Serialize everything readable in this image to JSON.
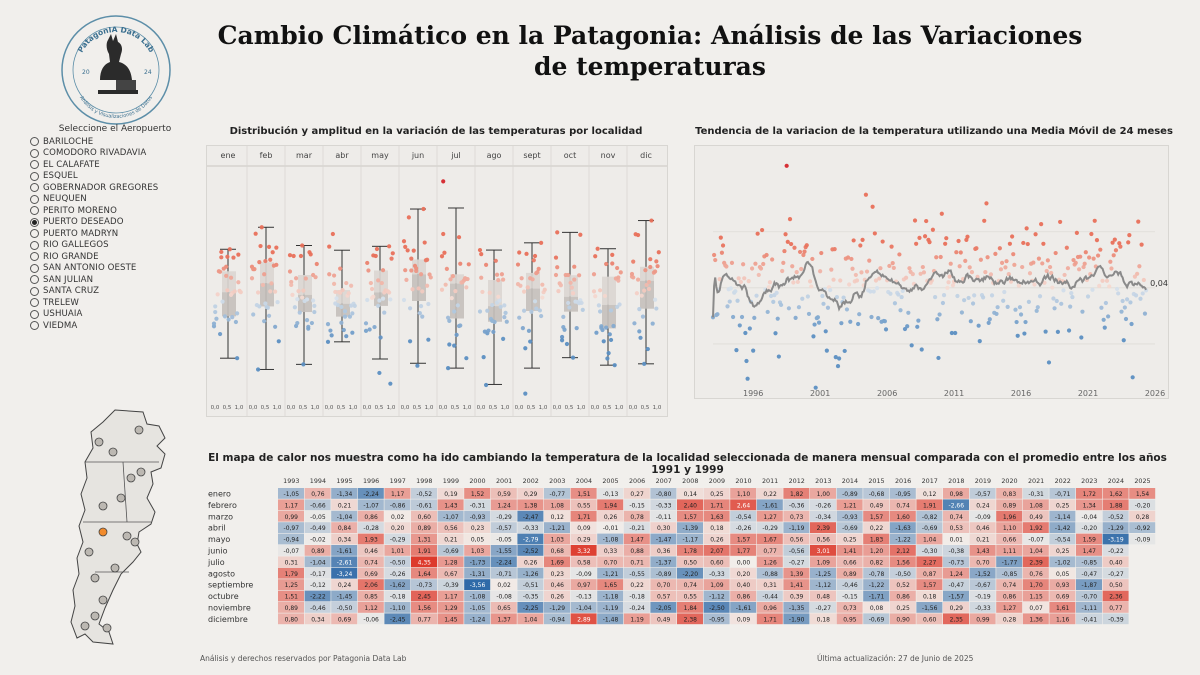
{
  "title": "Cambio Climático en la Patagonia: Análisis de las Variaciones de temperaturas",
  "logo": {
    "name": "PatagonIA Data Lab",
    "year_left": "20",
    "year_right": "24",
    "tagline": "Análisis y Visualizaciones de Datos"
  },
  "airport_selector": {
    "title": "Seleccione el Aeropuerto",
    "selected": "PUERTO DESEADO",
    "options": [
      "BARILOCHE",
      "COMODORO RIVADAVIA",
      "EL CALAFATE",
      "ESQUEL",
      "GOBERNADOR GREGORES",
      "NEUQUEN",
      "PERITO MORENO",
      "PUERTO DESEADO",
      "PUERTO MADRYN",
      "RIO GALLEGOS",
      "RIO GRANDE",
      "SAN ANTONIO OESTE",
      "SAN JULIAN",
      "SANTA CRUZ",
      "TRELEW",
      "USHUAIA",
      "VIEDMA"
    ]
  },
  "colors": {
    "warm": "#e8705a",
    "cool": "#5b8fc2",
    "trend": "#8a8a8a",
    "highlight": "#d4262c",
    "map_marker": "#f28b2c"
  },
  "chart_data": [
    {
      "type": "boxplot",
      "title": "Distribución y amplitud en la variación de las temperaturas por localidad",
      "categories": [
        "ene",
        "feb",
        "mar",
        "abr",
        "may",
        "jun",
        "jul",
        "ago",
        "sept",
        "oct",
        "nov",
        "dic"
      ],
      "x_tick_labels": [
        "0,0",
        "0,5",
        "1,0"
      ],
      "ylim": [
        -3.5,
        4.7
      ],
      "outliers": [
        {
          "month": "jul",
          "value": 4.35
        }
      ]
    },
    {
      "type": "line",
      "title": "Tendencia de la variacion de la temperatura utilizando una Media Móvil de 24 meses",
      "x_ticks": [
        "1996",
        "2001",
        "2006",
        "2011",
        "2016",
        "2021",
        "2026"
      ],
      "xlim": [
        1993,
        2026
      ],
      "ylim": [
        -3.5,
        4.7
      ],
      "last_value_label": "0,04"
    },
    {
      "type": "heatmap",
      "title": "El mapa de calor nos muestra como ha ido cambiando la temperatura de la localidad seleccionada de manera mensual comparada con el promedio entre los años 1991 y 1999",
      "years": [
        "1993",
        "1994",
        "1995",
        "1996",
        "1997",
        "1998",
        "1999",
        "2000",
        "2001",
        "2002",
        "2003",
        "2004",
        "2005",
        "2006",
        "2007",
        "2008",
        "2009",
        "2010",
        "2011",
        "2012",
        "2013",
        "2014",
        "2015",
        "2016",
        "2017",
        "2018",
        "2019",
        "2020",
        "2021",
        "2022",
        "2023",
        "2024",
        "2025"
      ],
      "rows": [
        {
          "month": "enero",
          "values": [
            "-1,05",
            "0,76",
            "-1,34",
            "-2,24",
            "1,17",
            "-0,52",
            "0,19",
            "1,52",
            "0,59",
            "0,29",
            "-0,77",
            "1,51",
            "-0,13",
            "0,27",
            "-0,80",
            "0,14",
            "0,25",
            "1,10",
            "0,22",
            "1,82",
            "1,00",
            "-0,89",
            "-0,68",
            "-0,95",
            "0,12",
            "0,98",
            "-0,57",
            "0,83",
            "-0,31",
            "-0,71",
            "1,72",
            "1,62",
            "1,54"
          ]
        },
        {
          "month": "febrero",
          "values": [
            "1,17",
            "-0,66",
            "0,21",
            "-1,07",
            "-0,86",
            "-0,61",
            "1,43",
            "-0,31",
            "1,24",
            "1,38",
            "1,08",
            "0,55",
            "1,94",
            "-0,15",
            "-0,33",
            "2,40",
            "1,71",
            "2,64",
            "-1,61",
            "-0,36",
            "-0,26",
            "1,21",
            "0,49",
            "0,74",
            "1,91",
            "-2,66",
            "0,24",
            "0,89",
            "1,08",
            "0,25",
            "1,34",
            "1,88",
            "-0,20"
          ]
        },
        {
          "month": "marzo",
          "values": [
            "0,99",
            "-0,05",
            "-1,04",
            "0,86",
            "0,02",
            "0,60",
            "-1,07",
            "-0,93",
            "-0,29",
            "-2,47",
            "0,12",
            "1,71",
            "0,26",
            "0,78",
            "-0,11",
            "1,57",
            "1,63",
            "-0,54",
            "1,27",
            "0,73",
            "-0,34",
            "-0,93",
            "1,57",
            "1,60",
            "-0,82",
            "0,74",
            "-0,09",
            "1,96",
            "0,49",
            "-1,14",
            "-0,04",
            "-0,52",
            "0,28"
          ]
        },
        {
          "month": "abril",
          "values": [
            "-0,97",
            "-0,49",
            "0,84",
            "-0,28",
            "0,20",
            "0,89",
            "0,56",
            "0,23",
            "-0,57",
            "-0,33",
            "-1,21",
            "0,09",
            "-0,01",
            "-0,21",
            "0,30",
            "-1,39",
            "0,18",
            "-0,26",
            "-0,29",
            "-1,19",
            "2,39",
            "-0,69",
            "0,22",
            "-1,63",
            "-0,69",
            "0,53",
            "0,46",
            "1,10",
            "1,92",
            "-1,42",
            "-0,20",
            "-1,29",
            "-0,92"
          ]
        },
        {
          "month": "mayo",
          "values": [
            "-0,94",
            "-0,02",
            "0,34",
            "1,93",
            "-0,29",
            "1,31",
            "0,21",
            "0,05",
            "-0,05",
            "-2,79",
            "1,03",
            "0,29",
            "-1,08",
            "1,47",
            "-1,47",
            "-1,17",
            "0,26",
            "1,57",
            "1,67",
            "0,56",
            "0,56",
            "0,25",
            "1,83",
            "-1,22",
            "1,04",
            "0,01",
            "0,21",
            "0,66",
            "-0,07",
            "-0,54",
            "1,59",
            "-3,19",
            "-0,09"
          ]
        },
        {
          "month": "junio",
          "values": [
            "-0,07",
            "0,89",
            "-1,61",
            "0,46",
            "1,01",
            "1,91",
            "-0,69",
            "1,03",
            "-1,55",
            "-2,52",
            "0,68",
            "3,32",
            "0,33",
            "0,88",
            "0,36",
            "1,78",
            "2,07",
            "1,77",
            "0,77",
            "-0,56",
            "3,01",
            "1,41",
            "1,20",
            "2,12",
            "-0,30",
            "-0,38",
            "1,43",
            "1,11",
            "1,04",
            "0,25",
            "1,47",
            "-0,22",
            ""
          ]
        },
        {
          "month": "julio",
          "values": [
            "0,31",
            "-1,04",
            "-2,61",
            "0,74",
            "-0,50",
            "4,35",
            "1,28",
            "-1,73",
            "-2,24",
            "0,26",
            "1,69",
            "0,58",
            "0,70",
            "0,71",
            "-1,37",
            "0,50",
            "0,60",
            "0,00",
            "1,26",
            "-0,27",
            "1,09",
            "0,66",
            "0,82",
            "1,56",
            "2,27",
            "-0,73",
            "0,70",
            "-1,77",
            "2,39",
            "-1,02",
            "-0,85",
            "0,40",
            ""
          ]
        },
        {
          "month": "agosto",
          "values": [
            "1,79",
            "-0,17",
            "-3,24",
            "0,69",
            "-0,26",
            "1,64",
            "0,67",
            "-1,31",
            "-0,71",
            "-1,26",
            "0,23",
            "-0,09",
            "-1,21",
            "-0,55",
            "-0,89",
            "-2,20",
            "-0,33",
            "0,20",
            "-0,88",
            "1,39",
            "-1,25",
            "0,89",
            "-0,78",
            "-0,50",
            "0,87",
            "1,24",
            "-1,52",
            "-0,85",
            "0,76",
            "0,05",
            "-0,47",
            "-0,27",
            ""
          ]
        },
        {
          "month": "septiembre",
          "values": [
            "1,25",
            "-0,12",
            "0,24",
            "2,06",
            "-1,62",
            "-0,73",
            "-0,39",
            "-3,56",
            "0,02",
            "-0,51",
            "0,46",
            "0,97",
            "1,65",
            "0,22",
            "0,70",
            "0,74",
            "1,09",
            "0,40",
            "0,31",
            "1,41",
            "-1,12",
            "-0,46",
            "-1,22",
            "0,52",
            "1,57",
            "-0,47",
            "-0,67",
            "0,74",
            "1,70",
            "0,93",
            "-1,87",
            "0,50",
            ""
          ]
        },
        {
          "month": "octubre",
          "values": [
            "1,51",
            "-2,22",
            "-1,45",
            "0,85",
            "-0,18",
            "2,45",
            "1,17",
            "-1,08",
            "-0,08",
            "-0,35",
            "0,26",
            "-0,13",
            "-1,18",
            "-0,18",
            "0,57",
            "0,55",
            "-1,12",
            "0,86",
            "-0,44",
            "0,39",
            "0,48",
            "-0,15",
            "-1,71",
            "0,86",
            "0,18",
            "-1,57",
            "-0,19",
            "0,86",
            "1,15",
            "0,69",
            "-0,70",
            "2,36",
            ""
          ]
        },
        {
          "month": "noviembre",
          "values": [
            "0,89",
            "-0,46",
            "-0,50",
            "1,12",
            "-1,10",
            "1,56",
            "1,29",
            "-1,05",
            "0,65",
            "-2,25",
            "-1,29",
            "-1,04",
            "-1,19",
            "-0,24",
            "-2,05",
            "1,84",
            "-2,50",
            "-1,61",
            "0,96",
            "-1,35",
            "-0,27",
            "0,73",
            "0,08",
            "0,25",
            "-1,56",
            "0,29",
            "-0,33",
            "1,27",
            "0,07",
            "1,61",
            "-1,11",
            "0,77",
            ""
          ]
        },
        {
          "month": "diciembre",
          "values": [
            "0,80",
            "0,34",
            "0,69",
            "-0,06",
            "-2,45",
            "0,77",
            "1,45",
            "-1,24",
            "1,37",
            "1,04",
            "-0,94",
            "2,89",
            "-1,48",
            "1,19",
            "0,49",
            "2,38",
            "-0,95",
            "0,09",
            "1,71",
            "-1,90",
            "0,18",
            "0,95",
            "-0,69",
            "0,90",
            "0,60",
            "2,35",
            "0,99",
            "0,28",
            "1,36",
            "1,16",
            "-0,41",
            "-0,39",
            ""
          ]
        }
      ]
    }
  ],
  "footer": {
    "left": "Análisis y derechos reservados por Patagonia Data Lab",
    "right": "Última actualización: 27 de Junio de 2025"
  }
}
